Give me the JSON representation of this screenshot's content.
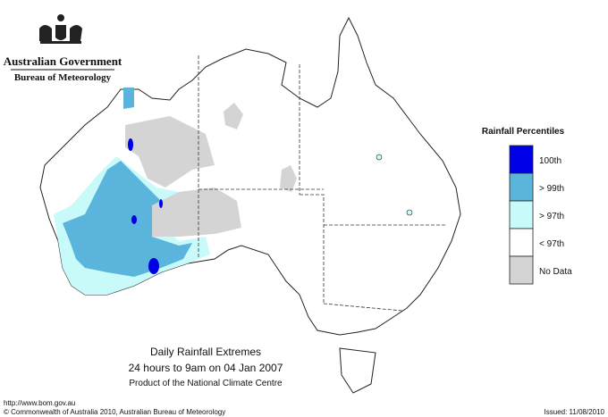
{
  "header": {
    "agency": "Australian Government",
    "bureau": "Bureau of Meteorology"
  },
  "legend": {
    "title": "Rainfall Percentiles",
    "items": [
      {
        "label": "100th",
        "color": "#0000e6"
      },
      {
        "label": "> 99th",
        "color": "#5ab4dc"
      },
      {
        "label": "> 97th",
        "color": "#c8fafa"
      },
      {
        "label": "< 97th",
        "color": "#ffffff"
      },
      {
        "label": "No Data",
        "color": "#d4d4d4"
      }
    ]
  },
  "caption": {
    "title": "Daily Rainfall Extremes",
    "subtitle": "24 hours to 9am on 04 Jan 2007",
    "credit": "Product of the National Climate Centre"
  },
  "footer": {
    "url": "http://www.bom.gov.au",
    "copyright": "© Commonwealth of Australia 2010, Australian Bureau of Meteorology",
    "issued": "Issued: 11/08/2010"
  }
}
